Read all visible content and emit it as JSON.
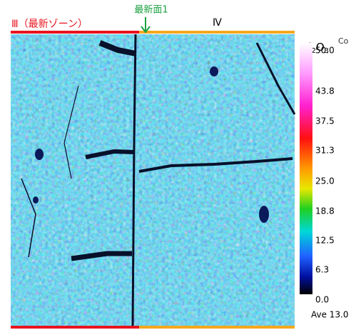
{
  "labels": {
    "zone3": "Ⅲ（最新ゾーン）",
    "surface": "最新面1",
    "zone4": "Ⅳ"
  },
  "colorbar": {
    "element": "Al",
    "sub1": "2",
    "oxygen": "O",
    "sub2": "3",
    "cut_text": "Co",
    "ticks": [
      "50.0",
      "43.8",
      "37.5",
      "31.3",
      "25.0",
      "18.8",
      "12.5",
      "6.3",
      "0.0"
    ],
    "average": "Ave 13.0"
  }
}
